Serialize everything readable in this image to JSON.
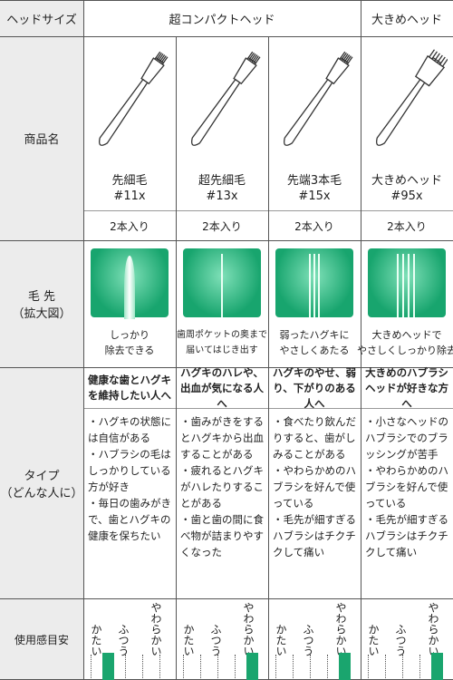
{
  "header": {
    "label": "ヘッドサイズ",
    "compact": "超コンパクトヘッド",
    "large": "大きめヘッド"
  },
  "row_labels": {
    "product": "商品名",
    "bristle": [
      "毛 先",
      "（拡大図）"
    ],
    "type": [
      "タイプ",
      "（どんな人に）"
    ],
    "feel": "使用感目安"
  },
  "feel_scale": [
    "かたい",
    "ふつう",
    "やわらかい"
  ],
  "products": [
    {
      "name": "先細毛",
      "code": "#11x",
      "quantity": "2本入り",
      "bristle_caption": [
        "しっかり",
        "除去できる"
      ],
      "type_heading": "健康な歯とハグキを維持したい人へ",
      "bullets": [
        "・ハグキの状態には自信がある",
        "・ハブラシの毛はしっかりしている方が好き",
        "・毎日の歯みがきで、歯とハグキの健康を保ちたい"
      ]
    },
    {
      "name": "超先細毛",
      "code": "#13x",
      "quantity": "2本入り",
      "bristle_caption": [
        "歯周ポケットの奥まで",
        "届いてはじき出す"
      ],
      "type_heading": "ハグキのハレや、出血が気になる人へ",
      "bullets": [
        "・歯みがきをするとハグキから出血することがある",
        "・疲れるとハグキがハレたりすることがある",
        "・歯と歯の間に食べ物が詰まりやすくなった"
      ]
    },
    {
      "name": "先端3本毛",
      "code": "#15x",
      "quantity": "2本入り",
      "bristle_caption": [
        "弱ったハグキに",
        "やさしくあたる"
      ],
      "type_heading": "ハグキのやせ、弱り、下がりのある人へ",
      "bullets": [
        "・食べたり飲んだりすると、歯がしみることがある",
        "・やわらかめのハブラシを好んで使っている",
        "・毛先が細すぎるハブラシはチクチクして痛い"
      ]
    },
    {
      "name": "大きめヘッド",
      "code": "#95x",
      "quantity": "2本入り",
      "bristle_caption": [
        "大きめヘッドで",
        "やさしくしっかり除去"
      ],
      "type_heading": "大きめのハブラシヘッドが好きな方へ",
      "bullets": [
        "・小さなヘッドのハブラシでのブラッシングが苦手",
        "・やわらかめのハブラシを好んで使っている",
        "・毛先が細すぎるハブラシはチクチクして痛い"
      ]
    }
  ]
}
